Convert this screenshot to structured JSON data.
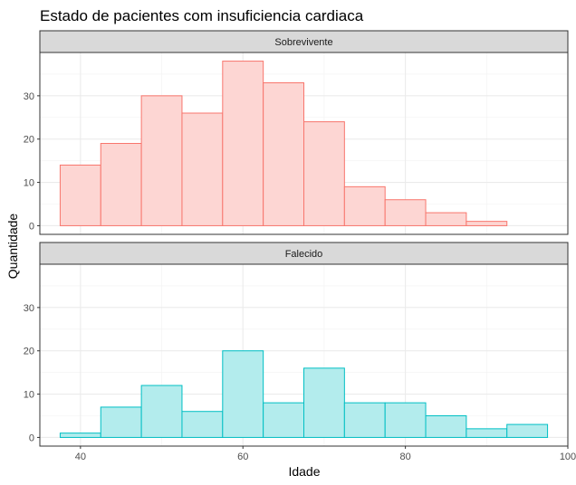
{
  "chart_data": {
    "type": "bar",
    "title": "Estado de pacientes com insuficiencia cardiaca",
    "xlabel": "Idade",
    "ylabel": "Quantidade",
    "bin_width": 5,
    "bin_starts": [
      37.5,
      42.5,
      47.5,
      52.5,
      57.5,
      62.5,
      67.5,
      72.5,
      77.5,
      82.5,
      87.5,
      92.5
    ],
    "xlim": [
      35,
      100
    ],
    "ylim": [
      -2,
      40
    ],
    "x_ticks": [
      40,
      60,
      80,
      100
    ],
    "y_ticks": [
      0,
      10,
      20,
      30
    ],
    "grid": true,
    "facets": [
      {
        "name": "Sobrevivente",
        "fill": "#f8766d",
        "values": [
          14,
          19,
          30,
          26,
          38,
          33,
          24,
          9,
          6,
          3,
          1,
          0
        ]
      },
      {
        "name": "Falecido",
        "fill": "#00bfc4",
        "values": [
          1,
          7,
          12,
          6,
          20,
          8,
          16,
          8,
          8,
          5,
          2,
          3
        ]
      }
    ]
  }
}
